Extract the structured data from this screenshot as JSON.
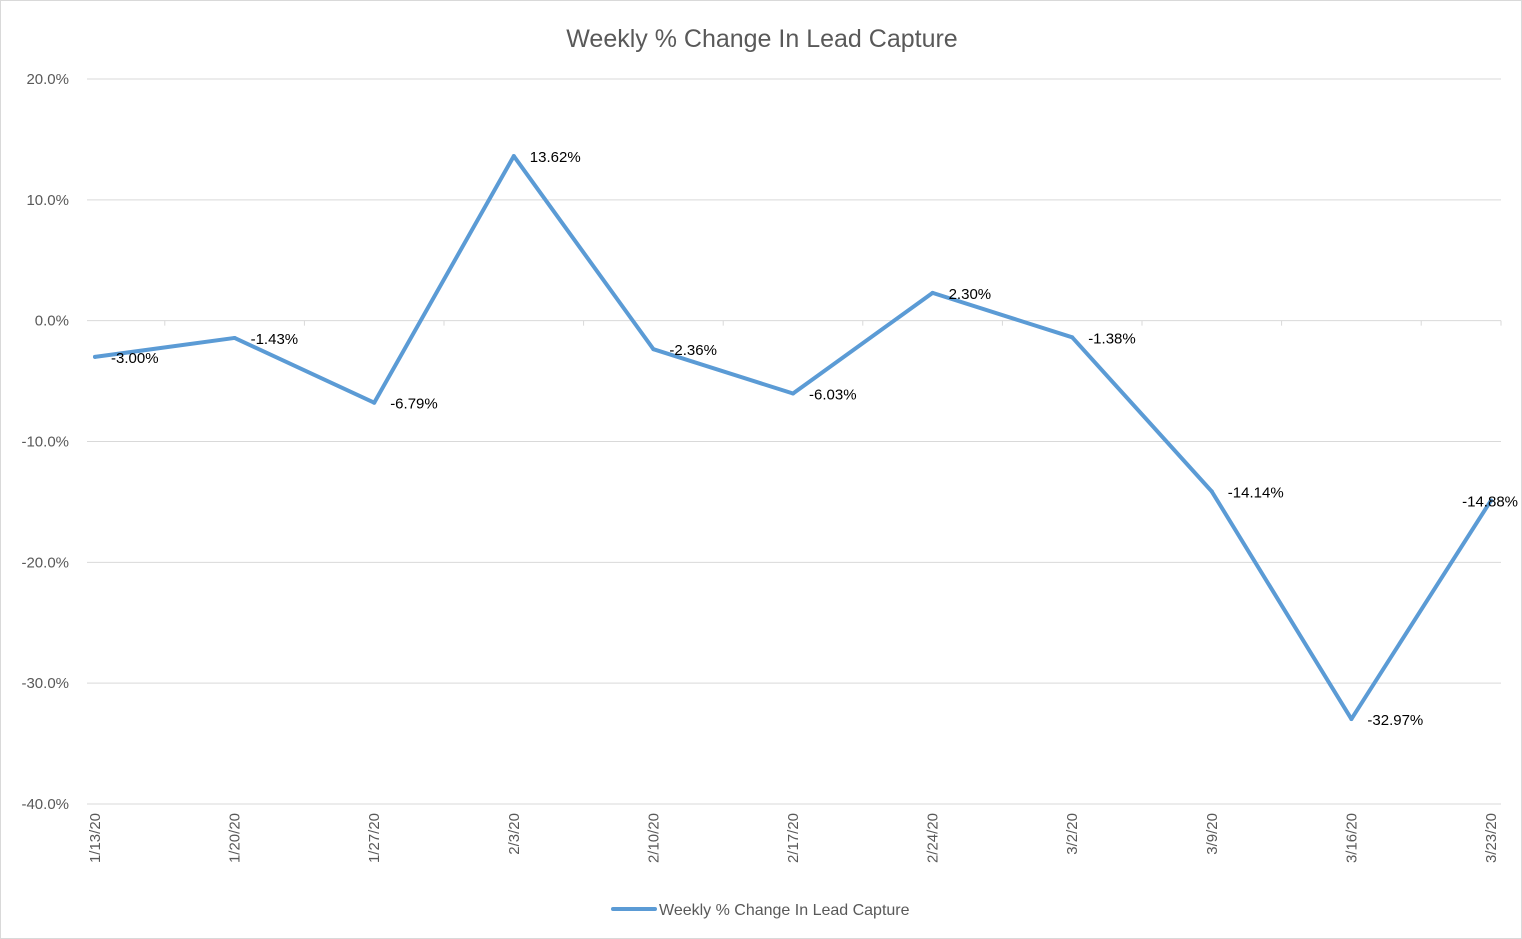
{
  "chart_data": {
    "type": "line",
    "title": "Weekly % Change In Lead Capture",
    "xlabel": "",
    "ylabel": "",
    "categories": [
      "1/13/20",
      "1/20/20",
      "1/27/20",
      "2/3/20",
      "2/10/20",
      "2/17/20",
      "2/24/20",
      "3/2/20",
      "3/9/20",
      "3/16/20",
      "3/23/20"
    ],
    "series": [
      {
        "name": "Weekly % Change In Lead Capture",
        "values": [
          -3.0,
          -1.43,
          -6.79,
          13.62,
          -2.36,
          -6.03,
          2.3,
          -1.38,
          -14.14,
          -32.97,
          -14.88
        ],
        "labels": [
          "-3.00%",
          "-1.43%",
          "-6.79%",
          "13.62%",
          "-2.36%",
          "-6.03%",
          "2.30%",
          "-1.38%",
          "-14.14%",
          "-32.97%",
          "-14.88%"
        ],
        "color": "#5b9bd5"
      }
    ],
    "ylim": [
      -40,
      20
    ],
    "y_ticks": [
      20,
      10,
      0,
      -10,
      -20,
      -30,
      -40
    ],
    "y_tick_labels": [
      "20.0%",
      "10.0%",
      "0.0%",
      "-10.0%",
      "-20.0%",
      "-30.0%",
      "-40.0%"
    ],
    "grid": true,
    "legend": "bottom",
    "colors": {
      "gridline": "#d9d9d9",
      "axis_text": "#595959",
      "title_text": "#595959"
    }
  }
}
